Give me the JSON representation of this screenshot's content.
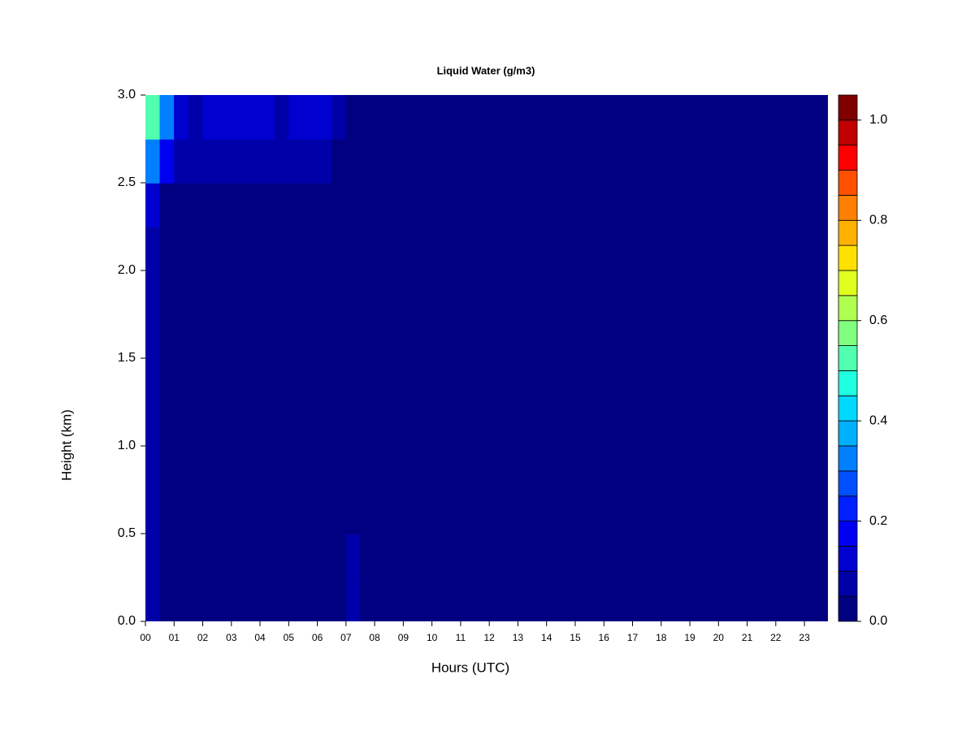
{
  "chart_data": {
    "type": "heatmap",
    "title": "Liquid Water (g/m3)",
    "xlabel": "Hours (UTC)",
    "ylabel": "Height (km)",
    "x": [
      0.25,
      0.75,
      1.25,
      1.75,
      2.25,
      2.75,
      3.25,
      3.75,
      4.25,
      4.75,
      5.25,
      5.75,
      6.25,
      6.75,
      7.25,
      7.75,
      8.25,
      8.75,
      9.25,
      9.75,
      10.25,
      10.75,
      11.25,
      11.75,
      12.25,
      12.75,
      13.25,
      13.75,
      14.25,
      14.75,
      15.25,
      15.75,
      16.25,
      16.75,
      17.25,
      17.75,
      18.25,
      18.75,
      19.25,
      19.75,
      20.25,
      20.75,
      21.25,
      21.75,
      22.25,
      22.75,
      23.25,
      23.75
    ],
    "y": [
      0.125,
      0.375,
      0.625,
      0.875,
      1.125,
      1.375,
      1.625,
      1.875,
      2.125,
      2.375,
      2.625,
      2.875
    ],
    "z": [
      [
        0.06,
        0.01,
        0.01,
        0.01,
        0.01,
        0.01,
        0.01,
        0.01,
        0.01,
        0.01,
        0.01,
        0.01,
        0.01,
        0.01,
        0.07,
        0.01,
        0.01,
        0.01,
        0.01,
        0.01,
        0.01,
        0.01,
        0.01,
        0.01,
        0.01,
        0.01,
        0.01,
        0.01,
        0.01,
        0.01,
        0.01,
        0.01,
        0.01,
        0.01,
        0.01,
        0.01,
        0.01,
        0.01,
        0.01,
        0.01,
        0.01,
        0.01,
        0.01,
        0.01,
        0.01,
        0.01,
        0.01,
        0.01
      ],
      [
        0.06,
        0.01,
        0.01,
        0.01,
        0.01,
        0.01,
        0.01,
        0.01,
        0.01,
        0.01,
        0.01,
        0.01,
        0.01,
        0.01,
        0.07,
        0.01,
        0.01,
        0.01,
        0.01,
        0.01,
        0.01,
        0.01,
        0.01,
        0.01,
        0.01,
        0.01,
        0.01,
        0.01,
        0.01,
        0.01,
        0.01,
        0.01,
        0.01,
        0.01,
        0.01,
        0.01,
        0.01,
        0.01,
        0.01,
        0.01,
        0.01,
        0.01,
        0.01,
        0.01,
        0.01,
        0.01,
        0.01,
        0.01
      ],
      [
        0.06,
        0.01,
        0.01,
        0.01,
        0.01,
        0.01,
        0.01,
        0.01,
        0.01,
        0.01,
        0.01,
        0.01,
        0.01,
        0.01,
        0.04,
        0.01,
        0.01,
        0.01,
        0.01,
        0.01,
        0.01,
        0.01,
        0.01,
        0.01,
        0.01,
        0.01,
        0.01,
        0.01,
        0.01,
        0.01,
        0.01,
        0.01,
        0.01,
        0.01,
        0.01,
        0.01,
        0.01,
        0.01,
        0.01,
        0.01,
        0.01,
        0.01,
        0.01,
        0.01,
        0.01,
        0.01,
        0.01,
        0.01
      ],
      [
        0.06,
        0.01,
        0.01,
        0.01,
        0.01,
        0.01,
        0.01,
        0.01,
        0.01,
        0.01,
        0.01,
        0.01,
        0.01,
        0.01,
        0.01,
        0.01,
        0.01,
        0.01,
        0.01,
        0.01,
        0.01,
        0.01,
        0.01,
        0.01,
        0.01,
        0.01,
        0.01,
        0.01,
        0.01,
        0.01,
        0.01,
        0.01,
        0.01,
        0.01,
        0.01,
        0.01,
        0.01,
        0.01,
        0.01,
        0.01,
        0.01,
        0.01,
        0.01,
        0.01,
        0.01,
        0.01,
        0.01,
        0.01
      ],
      [
        0.06,
        0.01,
        0.01,
        0.01,
        0.01,
        0.01,
        0.01,
        0.01,
        0.01,
        0.01,
        0.01,
        0.01,
        0.01,
        0.01,
        0.01,
        0.01,
        0.01,
        0.01,
        0.01,
        0.01,
        0.01,
        0.01,
        0.01,
        0.01,
        0.01,
        0.01,
        0.01,
        0.01,
        0.01,
        0.01,
        0.01,
        0.01,
        0.01,
        0.01,
        0.01,
        0.01,
        0.01,
        0.01,
        0.01,
        0.01,
        0.01,
        0.01,
        0.01,
        0.01,
        0.01,
        0.01,
        0.01,
        0.01
      ],
      [
        0.06,
        0.01,
        0.01,
        0.01,
        0.01,
        0.01,
        0.01,
        0.01,
        0.01,
        0.01,
        0.01,
        0.01,
        0.01,
        0.01,
        0.01,
        0.01,
        0.01,
        0.01,
        0.01,
        0.01,
        0.01,
        0.01,
        0.01,
        0.01,
        0.01,
        0.01,
        0.01,
        0.01,
        0.01,
        0.01,
        0.01,
        0.01,
        0.01,
        0.01,
        0.01,
        0.01,
        0.01,
        0.01,
        0.01,
        0.01,
        0.01,
        0.01,
        0.01,
        0.01,
        0.01,
        0.01,
        0.01,
        0.01
      ],
      [
        0.06,
        0.01,
        0.01,
        0.01,
        0.01,
        0.01,
        0.01,
        0.01,
        0.01,
        0.01,
        0.01,
        0.01,
        0.01,
        0.01,
        0.01,
        0.01,
        0.01,
        0.01,
        0.01,
        0.01,
        0.01,
        0.01,
        0.01,
        0.01,
        0.01,
        0.01,
        0.01,
        0.01,
        0.01,
        0.01,
        0.01,
        0.01,
        0.01,
        0.01,
        0.01,
        0.01,
        0.01,
        0.01,
        0.01,
        0.01,
        0.01,
        0.01,
        0.01,
        0.01,
        0.01,
        0.01,
        0.01,
        0.01
      ],
      [
        0.06,
        0.01,
        0.01,
        0.01,
        0.01,
        0.01,
        0.01,
        0.01,
        0.01,
        0.01,
        0.01,
        0.01,
        0.01,
        0.01,
        0.01,
        0.01,
        0.01,
        0.01,
        0.01,
        0.01,
        0.01,
        0.01,
        0.01,
        0.01,
        0.01,
        0.01,
        0.01,
        0.01,
        0.01,
        0.01,
        0.01,
        0.01,
        0.01,
        0.01,
        0.01,
        0.01,
        0.01,
        0.01,
        0.01,
        0.01,
        0.01,
        0.01,
        0.01,
        0.01,
        0.01,
        0.01,
        0.01,
        0.01
      ],
      [
        0.06,
        0.01,
        0.01,
        0.01,
        0.01,
        0.01,
        0.01,
        0.01,
        0.01,
        0.01,
        0.01,
        0.01,
        0.01,
        0.01,
        0.01,
        0.01,
        0.01,
        0.01,
        0.01,
        0.01,
        0.01,
        0.01,
        0.01,
        0.01,
        0.01,
        0.01,
        0.01,
        0.01,
        0.01,
        0.01,
        0.01,
        0.01,
        0.01,
        0.01,
        0.01,
        0.01,
        0.01,
        0.01,
        0.01,
        0.01,
        0.01,
        0.01,
        0.01,
        0.01,
        0.01,
        0.01,
        0.01,
        0.01
      ],
      [
        0.1,
        0.01,
        0.01,
        0.01,
        0.01,
        0.01,
        0.01,
        0.01,
        0.01,
        0.01,
        0.01,
        0.01,
        0.01,
        0.01,
        0.01,
        0.01,
        0.01,
        0.01,
        0.01,
        0.01,
        0.01,
        0.01,
        0.01,
        0.01,
        0.01,
        0.01,
        0.01,
        0.01,
        0.01,
        0.01,
        0.01,
        0.01,
        0.01,
        0.01,
        0.01,
        0.01,
        0.01,
        0.01,
        0.01,
        0.01,
        0.01,
        0.01,
        0.01,
        0.01,
        0.01,
        0.01,
        0.01,
        0.01
      ],
      [
        0.3,
        0.15,
        0.07,
        0.07,
        0.07,
        0.07,
        0.07,
        0.07,
        0.07,
        0.07,
        0.07,
        0.07,
        0.07,
        0.01,
        0.01,
        0.01,
        0.01,
        0.01,
        0.01,
        0.01,
        0.01,
        0.01,
        0.01,
        0.01,
        0.01,
        0.01,
        0.01,
        0.01,
        0.01,
        0.01,
        0.01,
        0.01,
        0.01,
        0.01,
        0.01,
        0.01,
        0.01,
        0.01,
        0.01,
        0.01,
        0.01,
        0.01,
        0.01,
        0.01,
        0.01,
        0.01,
        0.01,
        0.01
      ],
      [
        0.5,
        0.3,
        0.12,
        0.08,
        0.1,
        0.12,
        0.1,
        0.1,
        0.12,
        0.08,
        0.12,
        0.1,
        0.12,
        0.06,
        0.01,
        0.01,
        0.01,
        0.01,
        0.01,
        0.01,
        0.01,
        0.01,
        0.01,
        0.01,
        0.01,
        0.01,
        0.01,
        0.01,
        0.01,
        0.01,
        0.01,
        0.01,
        0.01,
        0.01,
        0.01,
        0.01,
        0.01,
        0.01,
        0.01,
        0.01,
        0.01,
        0.01,
        0.01,
        0.01,
        0.01,
        0.01,
        0.01,
        0.01
      ]
    ],
    "xlim": [
      0,
      23.82
    ],
    "ylim": [
      0,
      3
    ],
    "xticks": [
      {
        "value": 0,
        "label": "00"
      },
      {
        "value": 1,
        "label": "01"
      },
      {
        "value": 2,
        "label": "02"
      },
      {
        "value": 3,
        "label": "03"
      },
      {
        "value": 4,
        "label": "04"
      },
      {
        "value": 5,
        "label": "05"
      },
      {
        "value": 6,
        "label": "06"
      },
      {
        "value": 7,
        "label": "07"
      },
      {
        "value": 8,
        "label": "08"
      },
      {
        "value": 9,
        "label": "09"
      },
      10,
      11,
      12,
      13,
      14,
      15,
      16,
      17,
      18,
      19,
      20,
      21,
      22,
      23
    ],
    "yticks": [
      {
        "value": 0,
        "label": "0.0"
      },
      0.5,
      {
        "value": 1,
        "label": "1.0"
      },
      1.5,
      {
        "value": 2,
        "label": "2.0"
      },
      2.5,
      {
        "value": 3,
        "label": "3.0"
      }
    ],
    "levels": [
      0,
      0.05,
      0.1,
      0.15,
      0.2,
      0.25,
      0.3,
      0.35,
      0.4,
      0.45,
      0.5,
      0.55,
      0.6,
      0.65,
      0.7,
      0.75,
      0.8,
      0.85,
      0.9,
      0.95,
      1,
      1.05
    ],
    "colors": [
      "#000080",
      "#0000a8",
      "#0000d0",
      "#0000f0",
      "#0020ff",
      "#0050ff",
      "#0080ff",
      "#00b0ff",
      "#00d8ff",
      "#20ffe0",
      "#50ffb0",
      "#80ff80",
      "#b0ff50",
      "#e0ff20",
      "#ffe000",
      "#ffb000",
      "#ff8000",
      "#ff5000",
      "#ff0000",
      "#c00000",
      "#800000"
    ],
    "colorbar_ticks": [
      {
        "value": 0,
        "label": "0.0"
      },
      0.2,
      0.4,
      0.6,
      0.8,
      {
        "value": 1,
        "label": "1.0"
      }
    ]
  }
}
